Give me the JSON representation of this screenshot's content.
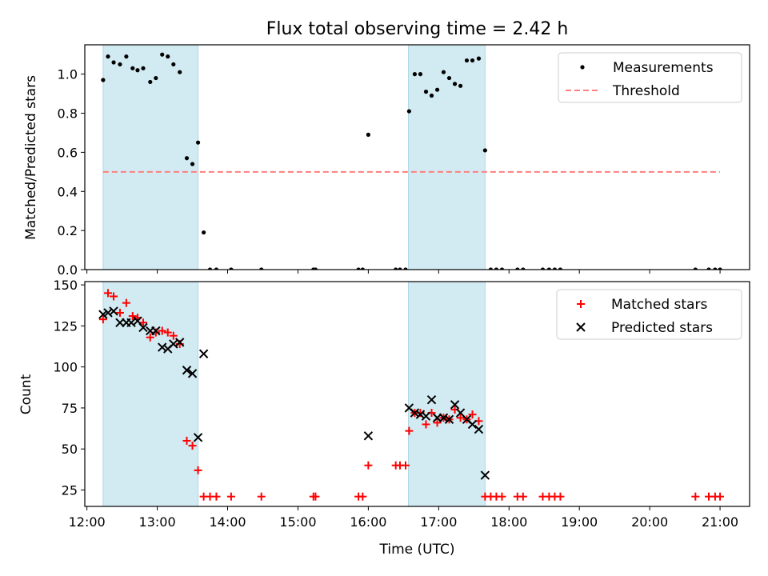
{
  "title": "Flux total observing time = 2.42 h",
  "colors": {
    "shade": "#add8e6",
    "matched": "#ff0000",
    "predicted": "#000000",
    "measurements": "#000000",
    "threshold": "#ff7f7f"
  },
  "chart_data": [
    {
      "type": "scatter",
      "ylabel": "Matched/Predicted stars",
      "xlabel": "",
      "xlim": [
        11.97,
        21.42
      ],
      "ylim": [
        0,
        1.15
      ],
      "yticks": [
        0.0,
        0.2,
        0.4,
        0.6,
        0.8,
        1.0
      ],
      "ytick_labels": [
        "0.0",
        "0.2",
        "0.4",
        "0.6",
        "0.8",
        "1.0"
      ],
      "shaded_regions": [
        [
          12.23,
          13.58
        ],
        [
          16.57,
          17.66
        ]
      ],
      "threshold": {
        "name": "Threshold",
        "y": 0.5,
        "x": [
          12.23,
          21.0
        ]
      },
      "legend": {
        "position": "upper right",
        "entries": [
          "Measurements",
          "Threshold"
        ]
      },
      "series": [
        {
          "name": "Measurements",
          "x": [
            12.23,
            12.3,
            12.38,
            12.47,
            12.56,
            12.65,
            12.72,
            12.8,
            12.9,
            12.98,
            13.07,
            13.15,
            13.23,
            13.32,
            13.42,
            13.5,
            13.58,
            13.66,
            13.75,
            13.84,
            14.05,
            14.48,
            15.22,
            15.25,
            15.86,
            15.92,
            16.0,
            16.39,
            16.45,
            16.53,
            16.58,
            16.66,
            16.74,
            16.82,
            16.9,
            16.98,
            17.07,
            17.15,
            17.23,
            17.31,
            17.4,
            17.48,
            17.57,
            17.66,
            17.74,
            17.82,
            17.9,
            18.12,
            18.2,
            18.48,
            18.57,
            18.65,
            18.73,
            20.65,
            20.84,
            20.93,
            21.0
          ],
          "y": [
            0.97,
            1.09,
            1.06,
            1.05,
            1.09,
            1.03,
            1.02,
            1.03,
            0.96,
            0.98,
            1.1,
            1.09,
            1.05,
            1.01,
            0.57,
            0.54,
            0.65,
            0.19,
            0.0,
            0.0,
            0.0,
            0.0,
            0.0,
            0.0,
            0.0,
            0.0,
            0.69,
            0.0,
            0.0,
            0.0,
            0.81,
            1.0,
            1.0,
            0.91,
            0.89,
            0.92,
            1.01,
            0.98,
            0.95,
            0.94,
            1.07,
            1.07,
            1.08,
            0.61,
            0.0,
            0.0,
            0.0,
            0.0,
            0.0,
            0.0,
            0.0,
            0.0,
            0.0,
            0.0,
            0.0,
            0.0,
            0.0
          ]
        }
      ]
    },
    {
      "type": "scatter",
      "ylabel": "Count",
      "xlabel": "Time (UTC)",
      "xlim": [
        11.97,
        21.42
      ],
      "ylim": [
        15,
        152
      ],
      "yticks": [
        25,
        50,
        75,
        100,
        125,
        150
      ],
      "ytick_labels": [
        "25",
        "50",
        "75",
        "100",
        "125",
        "150"
      ],
      "xticks": [
        12,
        13,
        14,
        15,
        16,
        17,
        18,
        19,
        20,
        21
      ],
      "xtick_labels": [
        "12:00",
        "13:00",
        "14:00",
        "15:00",
        "16:00",
        "17:00",
        "18:00",
        "19:00",
        "20:00",
        "21:00"
      ],
      "shaded_regions": [
        [
          12.23,
          13.58
        ],
        [
          16.57,
          17.66
        ]
      ],
      "legend": {
        "position": "upper right",
        "entries": [
          "Matched stars",
          "Predicted stars"
        ]
      },
      "series": [
        {
          "name": "Matched stars",
          "x": [
            12.23,
            12.3,
            12.38,
            12.47,
            12.56,
            12.65,
            12.72,
            12.8,
            12.9,
            12.98,
            13.07,
            13.15,
            13.23,
            13.32,
            13.42,
            13.5,
            13.58,
            13.66,
            13.75,
            13.84,
            14.05,
            14.48,
            15.22,
            15.25,
            15.86,
            15.92,
            16.0,
            16.39,
            16.45,
            16.53,
            16.58,
            16.66,
            16.74,
            16.82,
            16.9,
            16.98,
            17.07,
            17.15,
            17.23,
            17.31,
            17.4,
            17.48,
            17.57,
            17.66,
            17.74,
            17.82,
            17.9,
            18.12,
            18.2,
            18.48,
            18.57,
            18.65,
            18.73,
            20.65,
            20.84,
            20.93,
            21.0
          ],
          "y": [
            129,
            145,
            143,
            133,
            139,
            131,
            130,
            127,
            118,
            121,
            122,
            121,
            119,
            114,
            55,
            52,
            37,
            21,
            21,
            21,
            21,
            21,
            21,
            21,
            21,
            21,
            40,
            40,
            40,
            40,
            61,
            72,
            72,
            65,
            72,
            66,
            69,
            68,
            74,
            69,
            68,
            71,
            67,
            21,
            21,
            21,
            21,
            21,
            21,
            21,
            21,
            21,
            21,
            21,
            21,
            21,
            21
          ]
        },
        {
          "name": "Predicted stars",
          "x": [
            12.23,
            12.3,
            12.38,
            12.47,
            12.56,
            12.63,
            12.72,
            12.8,
            12.9,
            12.98,
            13.07,
            13.15,
            13.23,
            13.32,
            13.42,
            13.5,
            13.58,
            13.66,
            16.0,
            16.58,
            16.66,
            16.74,
            16.82,
            16.9,
            16.98,
            17.07,
            17.15,
            17.23,
            17.31,
            17.4,
            17.48,
            17.57,
            17.66
          ],
          "y": [
            132,
            133,
            134,
            127,
            127,
            127,
            128,
            124,
            122,
            122,
            112,
            111,
            114,
            115,
            98,
            96,
            57,
            108,
            58,
            75,
            72,
            71,
            70,
            80,
            69,
            69,
            68,
            77,
            72,
            68,
            65,
            62,
            34
          ]
        }
      ]
    }
  ]
}
